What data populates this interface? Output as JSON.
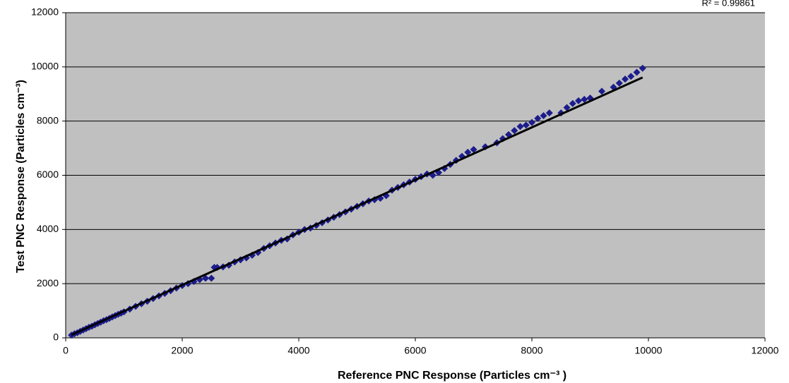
{
  "chart_data": {
    "type": "scatter",
    "annotation": "R² = 0.99861",
    "x_label": "Reference PNC Response (Particles cm⁻³ )",
    "y_label": "Test PNC Response (Particles cm⁻³)",
    "x": [
      100,
      150,
      200,
      250,
      300,
      350,
      400,
      450,
      500,
      550,
      600,
      650,
      700,
      750,
      800,
      850,
      900,
      950,
      1000,
      1100,
      1200,
      1300,
      1400,
      1500,
      1600,
      1700,
      1800,
      1900,
      2000,
      2100,
      2200,
      2300,
      2400,
      2500,
      2550,
      2600,
      2700,
      2800,
      2900,
      3000,
      3100,
      3200,
      3300,
      3400,
      3500,
      3600,
      3700,
      3800,
      3900,
      4000,
      4100,
      4200,
      4300,
      4400,
      4500,
      4600,
      4700,
      4800,
      4900,
      5000,
      5100,
      5200,
      5300,
      5400,
      5500,
      5600,
      5700,
      5800,
      5900,
      6000,
      6100,
      6200,
      6300,
      6400,
      6500,
      6600,
      6700,
      6800,
      6900,
      7000,
      7200,
      7400,
      7500,
      7600,
      7700,
      7800,
      7900,
      8000,
      8100,
      8200,
      8300,
      8500,
      8600,
      8700,
      8800,
      8900,
      9000,
      9200,
      9400,
      9500,
      9600,
      9700,
      9800,
      9900
    ],
    "series": [
      {
        "color": "#1c1c8c",
        "values": [
          100,
          150,
          190,
          240,
          290,
          340,
          390,
          430,
          480,
          530,
          580,
          630,
          670,
          720,
          770,
          820,
          870,
          910,
          960,
          1060,
          1160,
          1260,
          1350,
          1450,
          1550,
          1640,
          1740,
          1840,
          1930,
          2000,
          2080,
          2150,
          2200,
          2200,
          2600,
          2600,
          2620,
          2680,
          2800,
          2880,
          2950,
          3050,
          3150,
          3300,
          3400,
          3500,
          3600,
          3650,
          3800,
          3900,
          4000,
          4050,
          4150,
          4250,
          4350,
          4450,
          4550,
          4650,
          4750,
          4850,
          4950,
          5050,
          5100,
          5150,
          5250,
          5450,
          5550,
          5650,
          5750,
          5850,
          5950,
          6050,
          6000,
          6100,
          6250,
          6400,
          6550,
          6700,
          6850,
          6950,
          7050,
          7200,
          7350,
          7500,
          7650,
          7800,
          7850,
          7950,
          8100,
          8200,
          8300,
          8300,
          8500,
          8650,
          8750,
          8800,
          8850,
          9100,
          9250,
          9400,
          9550,
          9650,
          9800,
          9950
        ]
      }
    ],
    "trendline": {
      "color": "#000000",
      "x": [
        100,
        9900
      ],
      "values": [
        110,
        9610
      ]
    },
    "xlim": [
      0,
      12000
    ],
    "xticks": [
      0,
      2000,
      4000,
      6000,
      8000,
      10000,
      12000
    ],
    "ylim": [
      0,
      12000
    ],
    "yticks": [
      0,
      2000,
      4000,
      6000,
      8000,
      10000,
      12000
    ],
    "grid": true,
    "plot_background": "#c0c0c0"
  }
}
